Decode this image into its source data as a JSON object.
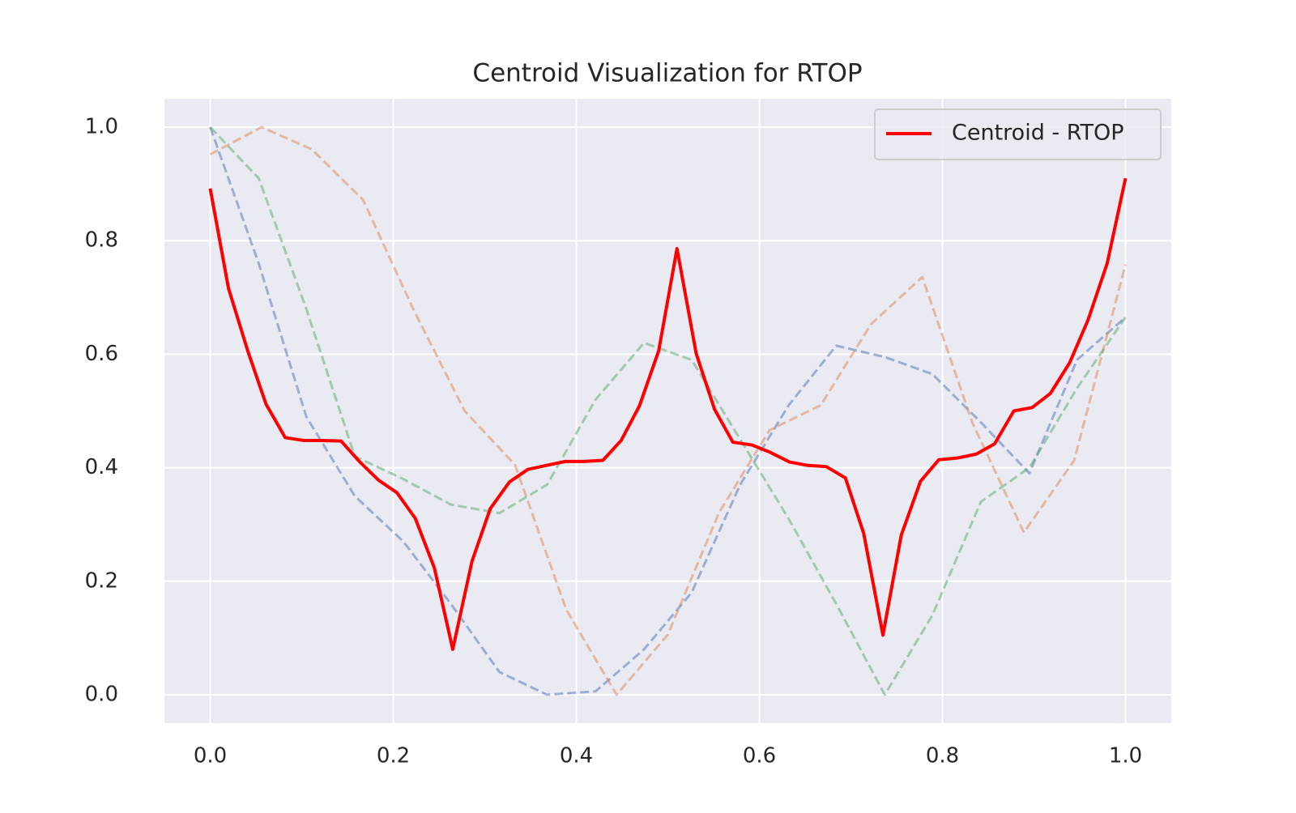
{
  "chart_data": {
    "type": "line",
    "title": "Centroid Visualization for RTOP",
    "xlim": [
      -0.05,
      1.05
    ],
    "ylim": [
      -0.05,
      1.05
    ],
    "xticks": [
      {
        "value": 0,
        "label": "0.0"
      },
      0.2,
      0.4,
      0.6,
      0.8,
      {
        "value": 1,
        "label": "1.0"
      }
    ],
    "yticks": [
      {
        "value": 0,
        "label": "0.0"
      },
      0.2,
      0.4,
      0.6,
      0.8,
      {
        "value": 1,
        "label": "1.0"
      }
    ],
    "grid": true,
    "legend_position": "upper right",
    "series": [
      {
        "color": "#4c72b0",
        "linestyle": "dashed",
        "alpha": 0.5,
        "x": [
          0,
          0.053,
          0.105,
          0.158,
          0.211,
          0.263,
          0.316,
          0.368,
          0.421,
          0.474,
          0.526,
          0.579,
          0.632,
          0.684,
          0.737,
          0.789,
          0.842,
          0.895,
          0.947,
          1.0
        ],
        "values": [
          1.0,
          0.76,
          0.49,
          0.35,
          0.27,
          0.16,
          0.04,
          0.0,
          0.006,
          0.08,
          0.18,
          0.37,
          0.51,
          0.615,
          0.595,
          0.565,
          0.48,
          0.39,
          0.59,
          0.665
        ]
      },
      {
        "color": "#dd8452",
        "linestyle": "dashed",
        "alpha": 0.5,
        "x": [
          0,
          0.056,
          0.111,
          0.167,
          0.222,
          0.278,
          0.333,
          0.389,
          0.444,
          0.5,
          0.556,
          0.611,
          0.667,
          0.722,
          0.778,
          0.833,
          0.889,
          0.944,
          1.0
        ],
        "values": [
          0.952,
          1.0,
          0.961,
          0.872,
          0.679,
          0.5,
          0.405,
          0.15,
          0.0,
          0.106,
          0.321,
          0.466,
          0.51,
          0.653,
          0.736,
          0.478,
          0.286,
          0.413,
          0.758
        ]
      },
      {
        "color": "#55a868",
        "linestyle": "dashed",
        "alpha": 0.5,
        "x": [
          0,
          0.053,
          0.105,
          0.158,
          0.211,
          0.263,
          0.316,
          0.368,
          0.421,
          0.474,
          0.526,
          0.579,
          0.632,
          0.684,
          0.737,
          0.789,
          0.842,
          0.895,
          0.947,
          1.0
        ],
        "values": [
          1.0,
          0.91,
          0.68,
          0.42,
          0.38,
          0.335,
          0.32,
          0.37,
          0.52,
          0.62,
          0.59,
          0.45,
          0.31,
          0.16,
          0.0,
          0.14,
          0.34,
          0.4,
          0.54,
          0.665
        ]
      },
      {
        "name": "Centroid - RTOP",
        "color": "#ff0000",
        "linestyle": "solid",
        "alpha": 1,
        "x": [
          0,
          0.02,
          0.041,
          0.061,
          0.082,
          0.102,
          0.122,
          0.143,
          0.163,
          0.184,
          0.204,
          0.224,
          0.245,
          0.265,
          0.286,
          0.306,
          0.327,
          0.347,
          0.367,
          0.388,
          0.408,
          0.429,
          0.449,
          0.469,
          0.49,
          0.51,
          0.531,
          0.551,
          0.571,
          0.592,
          0.612,
          0.633,
          0.653,
          0.673,
          0.694,
          0.714,
          0.735,
          0.755,
          0.776,
          0.796,
          0.816,
          0.837,
          0.857,
          0.878,
          0.898,
          0.918,
          0.939,
          0.959,
          0.98,
          1.0
        ],
        "values": [
          0.892,
          0.716,
          0.606,
          0.512,
          0.453,
          0.448,
          0.448,
          0.447,
          0.411,
          0.378,
          0.356,
          0.311,
          0.223,
          0.08,
          0.235,
          0.328,
          0.375,
          0.397,
          0.404,
          0.411,
          0.411,
          0.413,
          0.448,
          0.509,
          0.606,
          0.786,
          0.601,
          0.503,
          0.445,
          0.44,
          0.427,
          0.41,
          0.404,
          0.402,
          0.382,
          0.284,
          0.105,
          0.281,
          0.376,
          0.414,
          0.417,
          0.424,
          0.442,
          0.5,
          0.506,
          0.531,
          0.585,
          0.66,
          0.76,
          0.91
        ]
      }
    ]
  }
}
